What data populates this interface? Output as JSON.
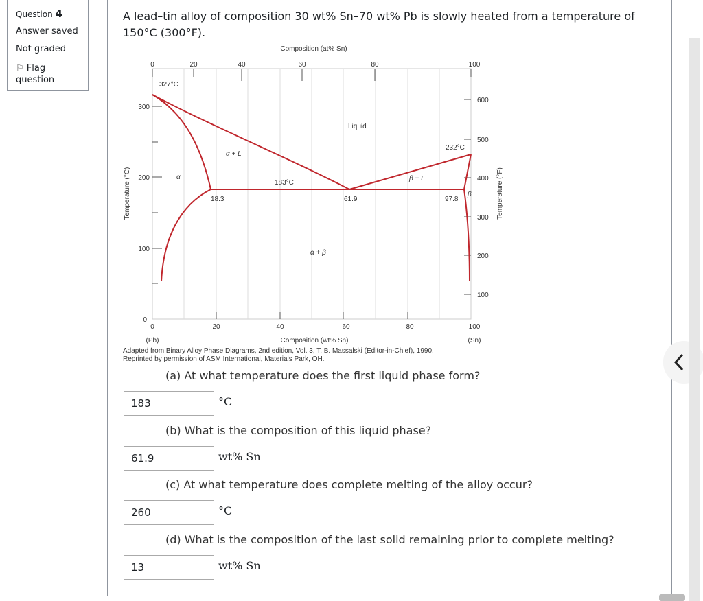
{
  "sidebar": {
    "question_label": "Question",
    "question_number": "4",
    "status": "Answer saved",
    "grade": "Not graded",
    "flag": "Flag question"
  },
  "question": {
    "text": "A lead–tin alloy of composition 30 wt% Sn–70 wt% Pb is slowly heated from a temperature of 150°C (300°F)."
  },
  "diagram": {
    "top_axis_title": "Composition (at% Sn)",
    "top_ticks": [
      "0",
      "20",
      "40",
      "60",
      "80",
      "100"
    ],
    "bottom_ticks": [
      "0",
      "20",
      "40",
      "60",
      "80",
      "100"
    ],
    "bottom_axis_title": "Composition (wt% Sn)",
    "left_end": "(Pb)",
    "right_end": "(Sn)",
    "left_ticks": [
      "0",
      "100",
      "200",
      "300"
    ],
    "left_axis_title": "Temperature (°C)",
    "right_ticks": [
      "100",
      "200",
      "300",
      "400",
      "500",
      "600"
    ],
    "right_axis_title": "Temperature (°F)",
    "labels": {
      "pb_melt": "327°C",
      "sn_melt": "232°C",
      "eutectic_temp": "183°C",
      "alpha_max": "18.3",
      "eutectic_comp": "61.9",
      "beta_max": "97.8",
      "liquid": "Liquid",
      "alpha_l": "α + L",
      "beta_l": "β + L",
      "alpha": "α",
      "beta": "β",
      "alpha_beta": "α + β"
    },
    "caption": [
      "Adapted from Binary Alloy Phase Diagrams, 2nd edition, Vol. 3, T. B. Massalski (Editor-in-Chief), 1990.",
      "Reprinted by permission of ASM International, Materials Park, OH."
    ]
  },
  "parts": [
    {
      "prompt": "(a) At what temperature does the first liquid phase form?",
      "answer": "183",
      "unit": "°C"
    },
    {
      "prompt": "(b) What is the composition of this liquid phase?",
      "answer": "61.9",
      "unit": "wt% Sn"
    },
    {
      "prompt": "(c) At what temperature does complete melting of the alloy occur?",
      "answer": "260",
      "unit": "°C"
    },
    {
      "prompt": "(d) What is the composition of the last solid remaining prior to complete melting?",
      "answer": "13",
      "unit": "wt% Sn"
    }
  ]
}
